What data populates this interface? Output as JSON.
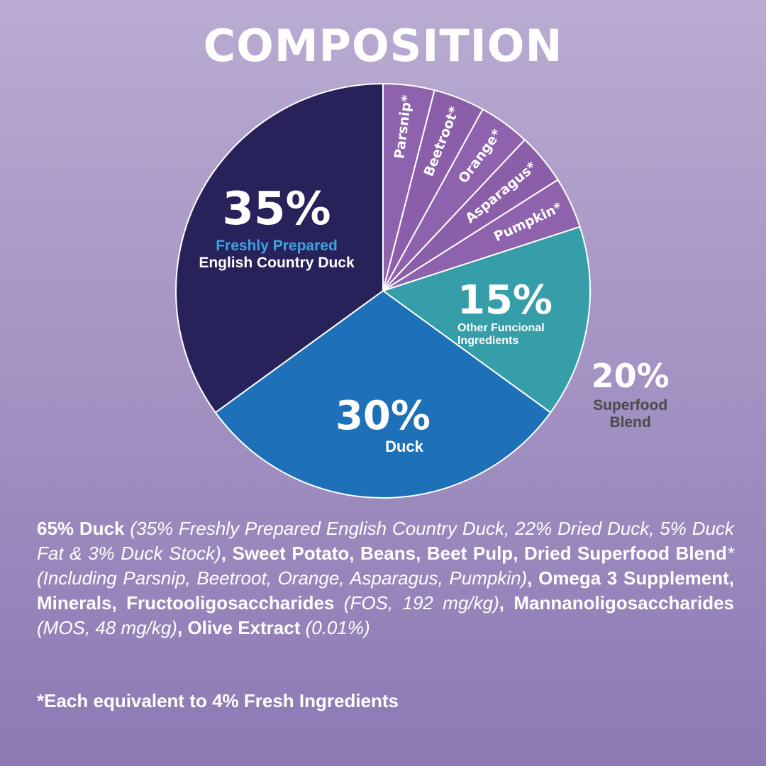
{
  "chart_data": {
    "type": "pie",
    "title": "COMPOSITION",
    "categories": [
      "Parsnip*",
      "Beetroot*",
      "Orange*",
      "Asparagus*",
      "Pumpkin*",
      "Other Funcional Ingredients",
      "Duck",
      "English Country Duck"
    ],
    "category_highlights": [
      null,
      null,
      null,
      null,
      null,
      null,
      null,
      "Freshly Prepared"
    ],
    "values": [
      4,
      4,
      4,
      4,
      4,
      15,
      30,
      35
    ],
    "value_labels": [
      null,
      null,
      null,
      null,
      null,
      "15%",
      "30%",
      "35%"
    ],
    "colors": [
      "#8e62ac",
      "#8a5ea8",
      "#8e62ac",
      "#8a5ea8",
      "#8e62ac",
      "#359ea8",
      "#1e70b8",
      "#27235a"
    ],
    "group": {
      "label": "Superfood Blend",
      "value": 20,
      "value_label": "20%"
    }
  },
  "ingredients": [
    {
      "text": "65% Duck",
      "style": "bold"
    },
    {
      "text": " (35% Freshly Prepared English Country Duck, 22% Dried Duck, 5% Duck Fat & 3% Duck Stock)",
      "style": "italic"
    },
    {
      "text": ", Sweet Potato, Beans, Beet Pulp, Dried Superfood Blend",
      "style": "bold"
    },
    {
      "text": "* (Including Parsnip, Beetroot, Orange, Asparagus, Pumpkin)",
      "style": "italic"
    },
    {
      "text": ", Omega 3 Supplement, Minerals, Fructooligosaccharides",
      "style": "bold"
    },
    {
      "text": " (FOS, 192 mg/kg)",
      "style": "italic"
    },
    {
      "text": ", Mannanoligosaccharides",
      "style": "bold"
    },
    {
      "text": " (MOS, 48 mg/kg)",
      "style": "italic"
    },
    {
      "text": ", Olive Extract",
      "style": "bold"
    },
    {
      "text": " (0.01%)",
      "style": "italic"
    }
  ],
  "footnote": "*Each equivalent to 4% Fresh Ingredients"
}
